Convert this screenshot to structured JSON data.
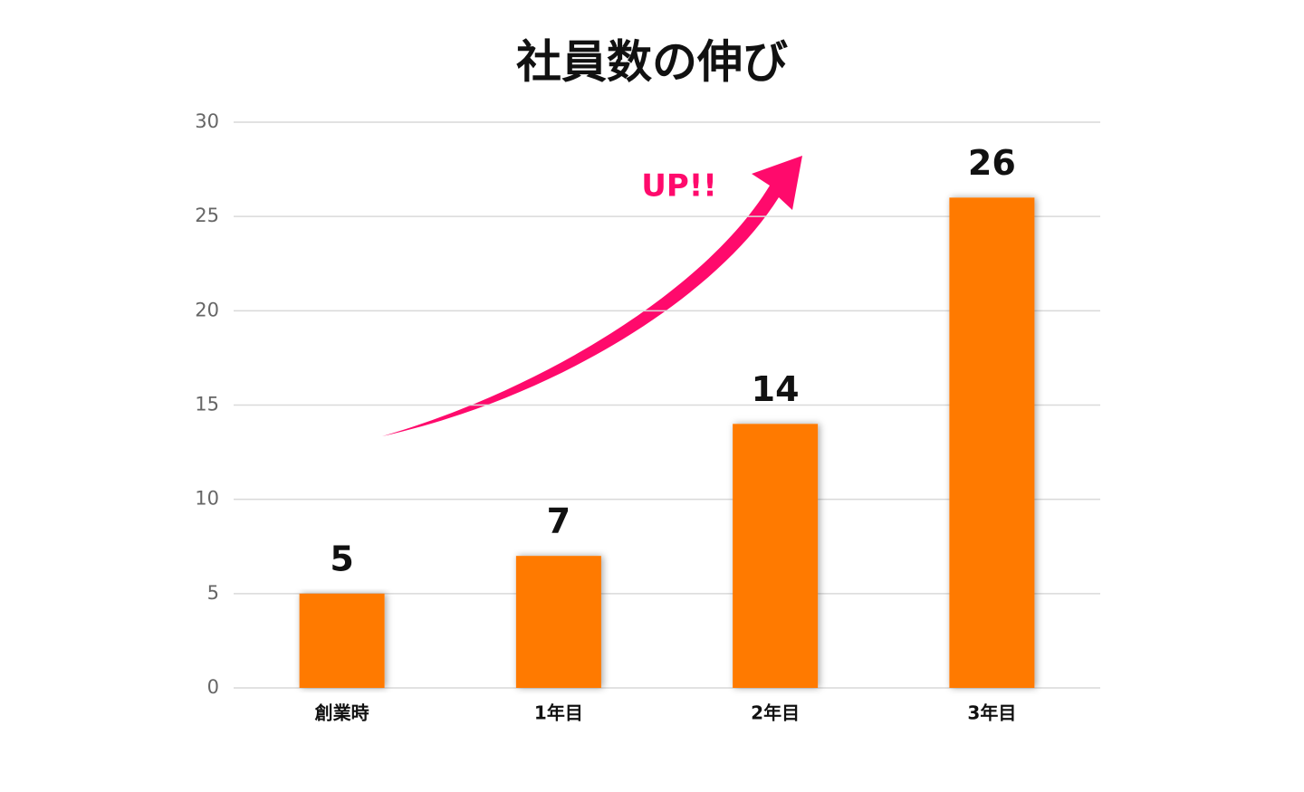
{
  "chart_data": {
    "type": "bar",
    "title": "社員数の伸び",
    "annotation": "UP!!",
    "categories": [
      "創業時",
      "1年目",
      "2年目",
      "3年目"
    ],
    "values": [
      5,
      7,
      14,
      26
    ],
    "color": "#ff7a00",
    "ylim": [
      0,
      30
    ],
    "yticks": [
      0,
      5,
      10,
      15,
      20,
      25,
      30
    ],
    "grid": true
  }
}
